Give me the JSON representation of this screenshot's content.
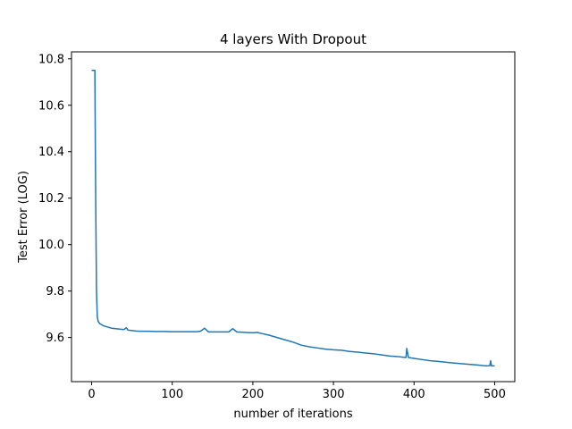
{
  "chart_data": {
    "type": "line",
    "title": "4 layers With Dropout",
    "xlabel": "number of iterations",
    "ylabel": "Test Error (LOG)",
    "xlim": [
      -25,
      525
    ],
    "ylim": [
      9.41,
      10.83
    ],
    "xticks": [
      0,
      100,
      200,
      300,
      400,
      500
    ],
    "yticks": [
      9.6,
      9.8,
      10.0,
      10.2,
      10.4,
      10.6,
      10.8
    ],
    "ytick_labels": [
      "9.6",
      "9.8",
      "10.0",
      "10.2",
      "10.4",
      "10.6",
      "10.8"
    ],
    "grid": false,
    "line_color": "#1f77b4",
    "series": [
      {
        "points": [
          [
            0,
            10.75
          ],
          [
            4,
            10.75
          ],
          [
            5,
            10.2
          ],
          [
            6,
            9.8
          ],
          [
            7,
            9.69
          ],
          [
            8,
            9.67
          ],
          [
            10,
            9.66
          ],
          [
            15,
            9.65
          ],
          [
            20,
            9.645
          ],
          [
            25,
            9.64
          ],
          [
            30,
            9.638
          ],
          [
            35,
            9.636
          ],
          [
            40,
            9.634
          ],
          [
            43,
            9.642
          ],
          [
            45,
            9.632
          ],
          [
            50,
            9.63
          ],
          [
            55,
            9.628
          ],
          [
            60,
            9.627
          ],
          [
            70,
            9.627
          ],
          [
            80,
            9.626
          ],
          [
            90,
            9.626
          ],
          [
            100,
            9.625
          ],
          [
            110,
            9.625
          ],
          [
            120,
            9.625
          ],
          [
            130,
            9.625
          ],
          [
            135,
            9.627
          ],
          [
            140,
            9.64
          ],
          [
            145,
            9.624
          ],
          [
            150,
            9.624
          ],
          [
            160,
            9.624
          ],
          [
            170,
            9.624
          ],
          [
            175,
            9.638
          ],
          [
            180,
            9.624
          ],
          [
            190,
            9.622
          ],
          [
            200,
            9.62
          ],
          [
            205,
            9.622
          ],
          [
            210,
            9.618
          ],
          [
            220,
            9.61
          ],
          [
            230,
            9.6
          ],
          [
            240,
            9.59
          ],
          [
            250,
            9.58
          ],
          [
            260,
            9.567
          ],
          [
            270,
            9.56
          ],
          [
            280,
            9.555
          ],
          [
            290,
            9.55
          ],
          [
            300,
            9.547
          ],
          [
            310,
            9.545
          ],
          [
            320,
            9.54
          ],
          [
            330,
            9.537
          ],
          [
            340,
            9.533
          ],
          [
            350,
            9.53
          ],
          [
            360,
            9.525
          ],
          [
            370,
            9.52
          ],
          [
            380,
            9.518
          ],
          [
            385,
            9.516
          ],
          [
            390,
            9.514
          ],
          [
            391,
            9.553
          ],
          [
            393,
            9.514
          ],
          [
            400,
            9.51
          ],
          [
            410,
            9.505
          ],
          [
            420,
            9.5
          ],
          [
            430,
            9.497
          ],
          [
            440,
            9.493
          ],
          [
            450,
            9.49
          ],
          [
            460,
            9.487
          ],
          [
            470,
            9.484
          ],
          [
            480,
            9.481
          ],
          [
            486,
            9.479
          ],
          [
            490,
            9.478
          ],
          [
            494,
            9.479
          ],
          [
            495,
            9.5
          ],
          [
            496,
            9.478
          ],
          [
            500,
            9.478
          ]
        ]
      }
    ]
  }
}
